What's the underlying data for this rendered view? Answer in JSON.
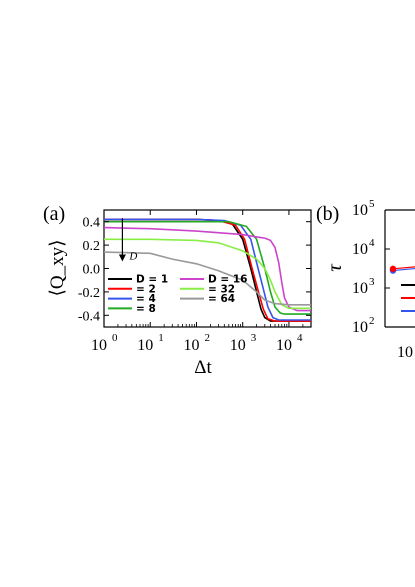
{
  "chart_data": [
    {
      "panel_label": "(a)",
      "type": "line",
      "xlabel": "Δt",
      "ylabel": "⟨Q_xy⟩",
      "x_scale": "log",
      "xlim": [
        1,
        30000
      ],
      "ylim": [
        -0.5,
        0.5
      ],
      "x_ticks": [
        {
          "value": 1,
          "base": "10",
          "exp": "0"
        },
        {
          "value": 10,
          "base": "10",
          "exp": "1"
        },
        {
          "value": 100,
          "base": "10",
          "exp": "2"
        },
        {
          "value": 1000,
          "base": "10",
          "exp": "3"
        },
        {
          "value": 10000,
          "base": "10",
          "exp": "4"
        }
      ],
      "y_ticks": [
        {
          "value": 0.4,
          "label": "0.4"
        },
        {
          "value": 0.2,
          "label": "0.2"
        },
        {
          "value": 0.0,
          "label": "0.0"
        },
        {
          "value": -0.2,
          "label": "-0.2"
        },
        {
          "value": -0.4,
          "label": "-0.4"
        }
      ],
      "annotation": {
        "text": "D",
        "arrow_from": [
          2.5,
          0.43
        ],
        "arrow_to": [
          2.5,
          0.06
        ]
      },
      "legend": {
        "placement": "bottom-left"
      },
      "series": [
        {
          "name": "D = 1",
          "color": "#000000",
          "x": [
            1,
            10,
            100,
            300,
            600,
            1000,
            1500,
            2000,
            2500,
            3000,
            4000,
            5000,
            10000,
            30000
          ],
          "y": [
            0.42,
            0.42,
            0.42,
            0.41,
            0.38,
            0.25,
            0.0,
            -0.2,
            -0.35,
            -0.42,
            -0.45,
            -0.45,
            -0.45,
            -0.45
          ]
        },
        {
          "name": "= 2",
          "color": "#ff0000",
          "x": [
            1,
            10,
            100,
            300,
            700,
            1100,
            1600,
            2200,
            2800,
            3500,
            5000,
            10000,
            30000
          ],
          "y": [
            0.42,
            0.42,
            0.42,
            0.41,
            0.37,
            0.25,
            0.0,
            -0.2,
            -0.35,
            -0.43,
            -0.45,
            -0.45,
            -0.45
          ]
        },
        {
          "name": "= 4",
          "color": "#3355ee",
          "x": [
            1,
            10,
            100,
            400,
            900,
            1500,
            2000,
            2700,
            3500,
            4500,
            6000,
            10000,
            30000
          ],
          "y": [
            0.42,
            0.42,
            0.42,
            0.41,
            0.37,
            0.25,
            0.05,
            -0.15,
            -0.33,
            -0.42,
            -0.44,
            -0.44,
            -0.44
          ]
        },
        {
          "name": "= 8",
          "color": "#22aa22",
          "x": [
            1,
            10,
            100,
            500,
            1200,
            2000,
            3000,
            4000,
            5000,
            6500,
            8000,
            12000,
            30000
          ],
          "y": [
            0.4,
            0.4,
            0.4,
            0.4,
            0.36,
            0.25,
            0.0,
            -0.2,
            -0.33,
            -0.38,
            -0.39,
            -0.39,
            -0.39
          ]
        },
        {
          "name": "D = 16",
          "color": "#cc44cc",
          "x": [
            1,
            10,
            100,
            1000,
            2000,
            3000,
            4000,
            5000,
            6000,
            7000,
            8000,
            10000,
            15000,
            30000
          ],
          "y": [
            0.35,
            0.34,
            0.32,
            0.29,
            0.27,
            0.26,
            0.24,
            0.18,
            0.05,
            -0.12,
            -0.25,
            -0.33,
            -0.36,
            -0.36
          ]
        },
        {
          "name": "= 32",
          "color": "#88ee44",
          "x": [
            1,
            10,
            100,
            300,
            1000,
            2000,
            3000,
            4000,
            5000,
            7000,
            10000,
            20000,
            30000
          ],
          "y": [
            0.25,
            0.25,
            0.24,
            0.22,
            0.15,
            0.08,
            0.0,
            -0.1,
            -0.2,
            -0.31,
            -0.34,
            -0.34,
            -0.34
          ]
        },
        {
          "name": "= 64",
          "color": "#999999",
          "x": [
            1,
            10,
            30,
            100,
            300,
            1000,
            2000,
            3000,
            5000,
            10000,
            30000
          ],
          "y": [
            0.14,
            0.13,
            0.08,
            0.04,
            -0.02,
            -0.1,
            -0.2,
            -0.27,
            -0.3,
            -0.31,
            -0.31
          ]
        }
      ]
    },
    {
      "panel_label": "(b)",
      "type": "line",
      "ylabel": "τ",
      "y_scale": "log",
      "ylim": [
        100,
        100000
      ],
      "y_ticks": [
        {
          "value": 100000,
          "base": "10",
          "exp": "5"
        },
        {
          "value": 10000,
          "base": "10",
          "exp": "4"
        },
        {
          "value": 1000,
          "base": "10",
          "exp": "3"
        },
        {
          "value": 100,
          "base": "10",
          "exp": "2"
        }
      ],
      "x_ticks_visible": [
        {
          "base": "10",
          "exp": ""
        }
      ],
      "series": [
        {
          "color": "#3355ee",
          "y": [
            2800
          ]
        },
        {
          "color": "#ff0000",
          "y": [
            3100
          ]
        }
      ],
      "legend_colors": [
        "#000000",
        "#ff0000",
        "#3355ee"
      ]
    }
  ]
}
